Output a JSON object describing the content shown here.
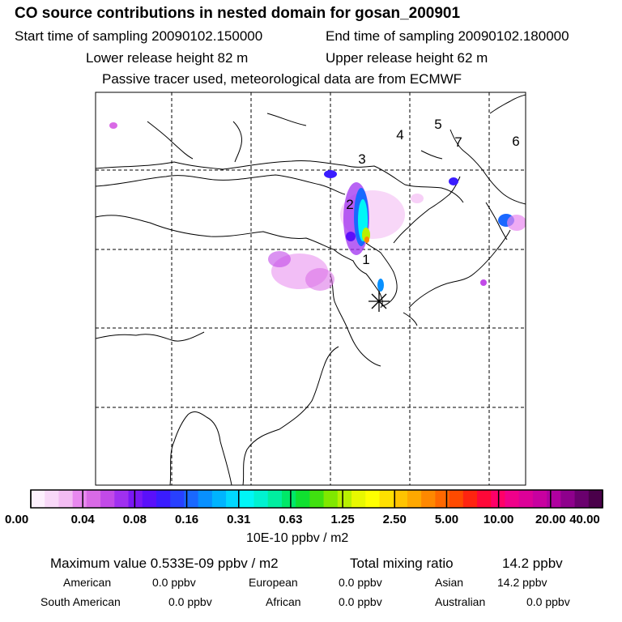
{
  "header": {
    "title": "CO  source contributions in nested domain for gosan_200901",
    "start_label": "Start time of sampling 20090102.150000",
    "end_label": "End time of sampling 20090102.180000",
    "lower_label": "Lower release height   82 m",
    "upper_label": "Upper release height   62 m",
    "tracer_note": "Passive tracer used, meteorological data are from ECMWF"
  },
  "map": {
    "region_labels": [
      "1",
      "2",
      "3",
      "4",
      "5",
      "6",
      "7"
    ],
    "receptor_icon": "asterisk-icon"
  },
  "colorbar": {
    "tick_labels": [
      "0.00",
      "0.04",
      "0.08",
      "0.16",
      "0.31",
      "0.63",
      "1.25",
      "2.50",
      "5.00",
      "10.00",
      "20.00",
      "40.00"
    ],
    "unit": "10E-10 ppbv / m2",
    "colors": [
      "#fdf0fd",
      "#f8d8f8",
      "#f3bcf3",
      "#e888ef",
      "#d96ae6",
      "#c24ae8",
      "#a030f0",
      "#7a18f5",
      "#5a10fa",
      "#3a1cff",
      "#2840ff",
      "#1a68ff",
      "#0890ff",
      "#00b4ff",
      "#00d8ff",
      "#00f6f6",
      "#00f2d0",
      "#00eea0",
      "#00e868",
      "#10e030",
      "#40e010",
      "#80e800",
      "#b8f000",
      "#e8f800",
      "#ffff00",
      "#ffe000",
      "#ffc400",
      "#ffa800",
      "#ff8800",
      "#ff6800",
      "#ff4a00",
      "#ff2410",
      "#ff0838",
      "#ff0068",
      "#f0008a",
      "#dd0098",
      "#c800a0",
      "#b000a0",
      "#8e008c",
      "#6a006e",
      "#4a004a"
    ]
  },
  "stats": {
    "max_label": "Maximum value  0.533E-09 ppbv / m2",
    "total_label": "Total mixing ratio",
    "total_value": "14.2 ppbv",
    "american_label": "American",
    "american_value": "0.0 ppbv",
    "european_label": "European",
    "european_value": "0.0 ppbv",
    "asian_label": "Asian",
    "asian_value": "14.2 ppbv",
    "south_american_label": "South American",
    "south_american_value": "0.0 ppbv",
    "african_label": "African",
    "african_value": "0.0 ppbv",
    "australian_label": "Australian",
    "australian_value": "0.0 ppbv"
  }
}
